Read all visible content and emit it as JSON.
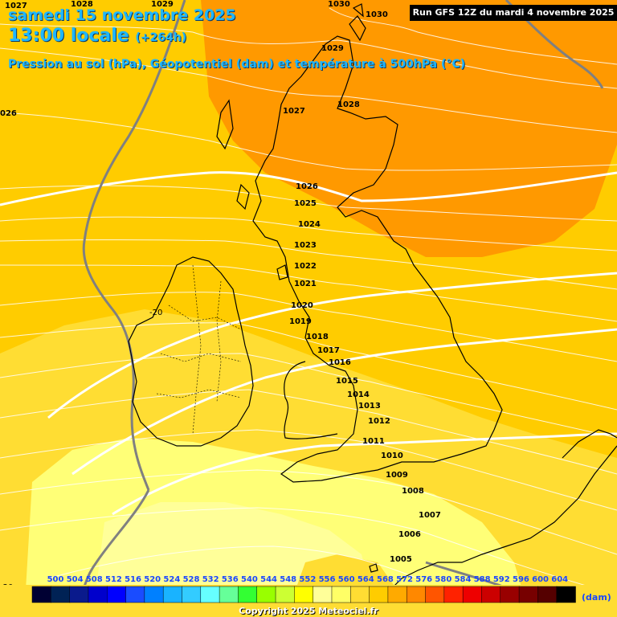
{
  "header": {
    "date_line": "samedi 15 novembre 2025",
    "time_line": "13:00 locale",
    "lead": "(+264h)",
    "description": "Pression au sol (hPa), Géopotentiel (dam) et température à 500hPa (°C)",
    "run": "Run GFS 12Z du mardi 4 novembre 2025"
  },
  "isobars": [
    {
      "label": "1030",
      "anchor": "top"
    },
    {
      "label": "1029"
    },
    {
      "label": "1028"
    },
    {
      "label": "1027"
    },
    {
      "label": "1026"
    },
    {
      "label": "1025"
    },
    {
      "label": "1024"
    },
    {
      "label": "1023"
    },
    {
      "label": "1022"
    },
    {
      "label": "1021"
    },
    {
      "label": "1020"
    },
    {
      "label": "1019"
    },
    {
      "label": "1018"
    },
    {
      "label": "1017"
    },
    {
      "label": "1016"
    },
    {
      "label": "1015"
    },
    {
      "label": "1014"
    },
    {
      "label": "1013"
    },
    {
      "label": "1012"
    },
    {
      "label": "1011"
    },
    {
      "label": "1010"
    },
    {
      "label": "1009"
    },
    {
      "label": "1008"
    },
    {
      "label": "1007"
    },
    {
      "label": "1006"
    },
    {
      "label": "1005"
    }
  ],
  "edge_labels": {
    "top_left": [
      "1027",
      "1028",
      "1029"
    ],
    "top_right": "1030",
    "left": "026"
  },
  "temperature_labels": [
    "-20",
    "-20"
  ],
  "scale": {
    "labels": [
      "500",
      "504",
      "508",
      "512",
      "516",
      "520",
      "524",
      "528",
      "532",
      "536",
      "540",
      "544",
      "548",
      "552",
      "556",
      "560",
      "564",
      "568",
      "572",
      "576",
      "580",
      "584",
      "588",
      "592",
      "596",
      "600",
      "604"
    ],
    "colors": [
      "#000033",
      "#002255",
      "#0a1a8c",
      "#0000cc",
      "#0000ff",
      "#1a4cff",
      "#0080ff",
      "#19b3ff",
      "#33ccff",
      "#66ffff",
      "#66ff99",
      "#33ff33",
      "#99ff00",
      "#ccff33",
      "#ffff00",
      "#ffff99",
      "#ffff66",
      "#ffdd33",
      "#ffcc00",
      "#ffaa00",
      "#ff8800",
      "#ff5500",
      "#ff2200",
      "#ee0000",
      "#cc0000",
      "#990000",
      "#770000",
      "#550000",
      "#000000"
    ],
    "units": "(dam)"
  },
  "colors": {
    "orange_zone": "#ff9900",
    "gold_zone": "#ffcc00",
    "yellow_zone": "#ffdd33",
    "pale_zone": "#ffff77",
    "palest_zone": "#ffff99",
    "border": "#808080"
  },
  "copyright": "Copyright 2025 Meteociel.fr"
}
